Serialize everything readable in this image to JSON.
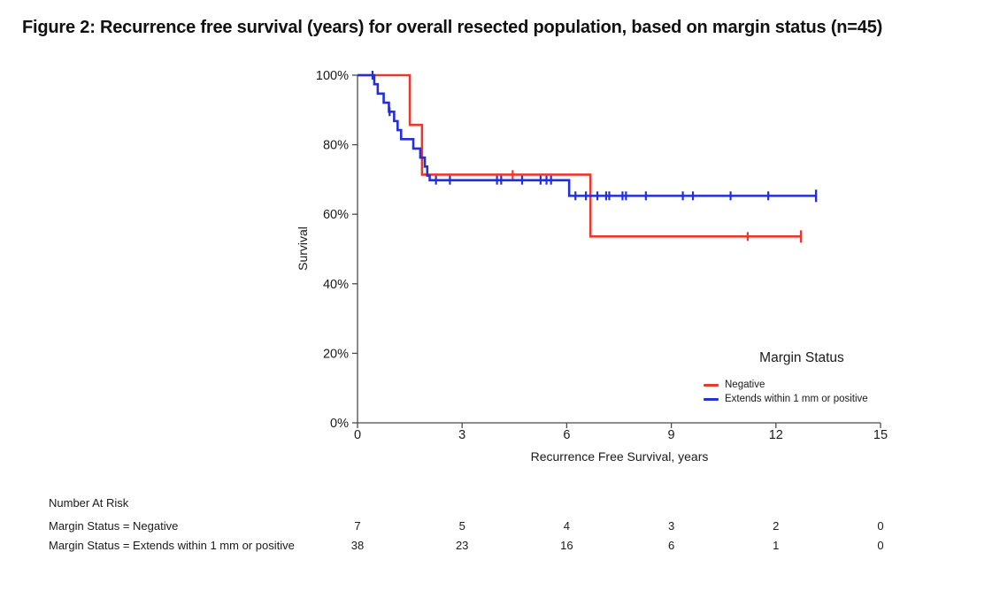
{
  "figure": {
    "title": "Figure 2: Recurrence free survival (years) for overall resected population, based on margin status (n=45)"
  },
  "chart_data": {
    "type": "line",
    "variant": "kaplan_meier_step",
    "title": "",
    "xlabel": "Recurrence Free Survival, years",
    "ylabel": "Survival",
    "xlim": [
      0,
      15
    ],
    "ylim": [
      0,
      100
    ],
    "grid": false,
    "x_ticks": [
      {
        "v": 0,
        "label": "0"
      },
      {
        "v": 3,
        "label": "3"
      },
      {
        "v": 6,
        "label": "6"
      },
      {
        "v": 9,
        "label": "9"
      },
      {
        "v": 12,
        "label": "12"
      },
      {
        "v": 15,
        "label": "15"
      }
    ],
    "y_ticks": [
      {
        "v": 0,
        "label": "0%"
      },
      {
        "v": 20,
        "label": "20%"
      },
      {
        "v": 40,
        "label": "40%"
      },
      {
        "v": 60,
        "label": "60%"
      },
      {
        "v": 80,
        "label": "80%"
      },
      {
        "v": 100,
        "label": "100%"
      }
    ],
    "legend": {
      "title": "Margin Status",
      "position": "inside-lower-right"
    },
    "series": [
      {
        "name": "Negative",
        "slug": "negative",
        "color": "#E8392E",
        "steps_pct": [
          [
            0,
            100
          ],
          [
            1.5,
            85.7
          ],
          [
            1.85,
            71.4
          ],
          [
            6.68,
            53.6
          ]
        ],
        "end_time": 12.72,
        "censors_pct": [
          [
            4.45,
            71.4
          ],
          [
            11.19,
            53.6
          ]
        ],
        "terminal_censor": true
      },
      {
        "name": "Extends within 1 mm or positive",
        "slug": "extends-within-1mm-or-positive",
        "color": "#2530D4",
        "steps_pct": [
          [
            0,
            100
          ],
          [
            0.48,
            97.4
          ],
          [
            0.58,
            94.7
          ],
          [
            0.75,
            92.1
          ],
          [
            0.9,
            89.5
          ],
          [
            1.05,
            86.8
          ],
          [
            1.15,
            84.2
          ],
          [
            1.25,
            81.6
          ],
          [
            1.6,
            78.9
          ],
          [
            1.8,
            76.3
          ],
          [
            1.93,
            73.7
          ],
          [
            2.0,
            71.1
          ],
          [
            2.07,
            69.8
          ],
          [
            6.07,
            65.3
          ]
        ],
        "end_time": 13.15,
        "censors_pct": [
          [
            0.43,
            100
          ],
          [
            0.92,
            89.5
          ],
          [
            2.25,
            69.8
          ],
          [
            2.65,
            69.8
          ],
          [
            4.0,
            69.8
          ],
          [
            4.12,
            69.8
          ],
          [
            4.72,
            69.8
          ],
          [
            5.25,
            69.8
          ],
          [
            5.42,
            69.8
          ],
          [
            5.55,
            69.8
          ],
          [
            6.25,
            65.3
          ],
          [
            6.55,
            65.3
          ],
          [
            6.88,
            65.3
          ],
          [
            7.13,
            65.3
          ],
          [
            7.22,
            65.3
          ],
          [
            7.6,
            65.3
          ],
          [
            7.7,
            65.3
          ],
          [
            8.27,
            65.3
          ],
          [
            9.33,
            65.3
          ],
          [
            9.62,
            65.3
          ],
          [
            10.7,
            65.3
          ],
          [
            11.78,
            65.3
          ]
        ],
        "terminal_censor": true
      }
    ]
  },
  "at_risk": {
    "header": "Number At Risk",
    "columns_years": [
      0,
      3,
      6,
      9,
      12,
      15
    ],
    "rows": [
      {
        "label": "Margin Status = Negative",
        "values": [
          "7",
          "5",
          "4",
          "3",
          "2",
          "0"
        ]
      },
      {
        "label": "Margin Status = Extends within 1 mm or positive",
        "values": [
          "38",
          "23",
          "16",
          "6",
          "1",
          "0"
        ]
      }
    ]
  },
  "colors": {
    "axis": "#4A4A4A",
    "tick_text": "#1a1a1a"
  }
}
